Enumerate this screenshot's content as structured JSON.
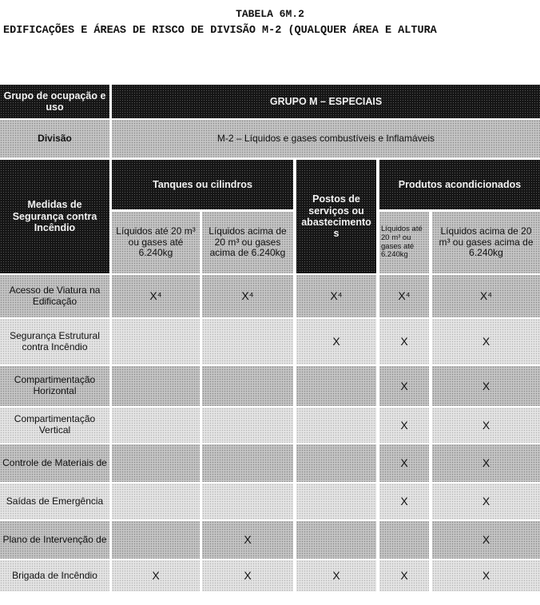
{
  "title": "TABELA 6M.2",
  "subtitle": "EDIFICAÇÕES E ÁREAS DE RISCO DE DIVISÃO M-2 (QUALQUER ÁREA E ALTURA",
  "header": {
    "group_label": "Grupo de ocupação e uso",
    "group_value": "GRUPO M – ESPECIAIS",
    "division_label": "Divisão",
    "division_value": "M-2 – Líquidos e gases combustíveis e Inflamáveis",
    "measures_label": "Medidas de Segurança contra Incêndio",
    "tanks": "Tanques ou cilindros",
    "stations": "Postos de serviços ou abastecimento s",
    "products": "Produtos acondicionados",
    "sub": [
      "Líquidos até 20 m³ ou gases até 6.240kg",
      "Líquidos acima de 20 m³ ou gases acima de 6.240kg",
      "Líquidos até 20 m³ ou gases até 6.240kg",
      "Líquidos acima de 20 m³ ou gases acima de 6.240kg"
    ]
  },
  "rows": [
    {
      "label": "Acesso de Viatura na Edificação",
      "cells": [
        "X⁴",
        "X⁴",
        "X⁴",
        "X⁴",
        "X⁴"
      ]
    },
    {
      "label": "Segurança Estrutural contra Incêndio",
      "cells": [
        "",
        "",
        "X",
        "X",
        "X"
      ]
    },
    {
      "label": "Compartimentação Horizontal",
      "cells": [
        "",
        "",
        "",
        "X",
        "X"
      ]
    },
    {
      "label": "Compartimentação Vertical",
      "cells": [
        "",
        "",
        "",
        "X",
        "X"
      ]
    },
    {
      "label": "Controle de Materiais de",
      "cells": [
        "",
        "",
        "",
        "X",
        "X"
      ]
    },
    {
      "label": "Saídas de Emergência",
      "cells": [
        "",
        "",
        "",
        "X",
        "X"
      ]
    },
    {
      "label": "Plano de Intervenção de",
      "cells": [
        "",
        "X",
        "",
        "",
        "X"
      ]
    },
    {
      "label": "Brigada de Incêndio",
      "cells": [
        "X",
        "X",
        "X",
        "X",
        "X"
      ]
    }
  ]
}
